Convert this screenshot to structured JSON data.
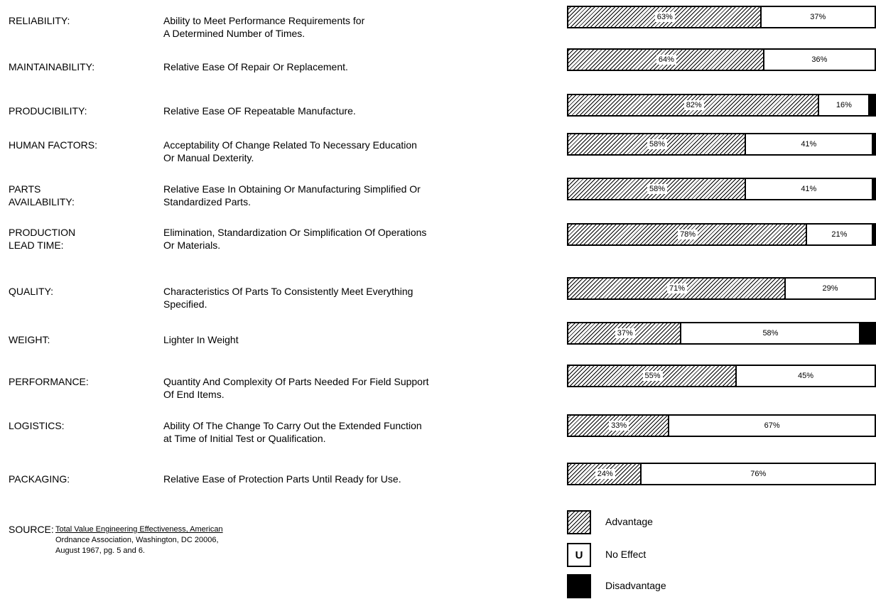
{
  "chart_data": {
    "type": "bar",
    "orientation": "horizontal-stacked-100",
    "legend": [
      "Advantage",
      "No Effect",
      "Disadvantage"
    ],
    "rows": [
      {
        "attribute": "RELIABILITY:",
        "description": "Ability to Meet Performance Requirements for\nA Determined Number of Times.",
        "advantage": 63,
        "no_effect": 37,
        "disadvantage": 0,
        "adv_label": "63%",
        "noe_label": "37%"
      },
      {
        "attribute": "MAINTAINABILITY:",
        "description": "Relative Ease Of Repair Or Replacement.",
        "advantage": 64,
        "no_effect": 36,
        "disadvantage": 0,
        "adv_label": "64%",
        "noe_label": "36%"
      },
      {
        "attribute": "PRODUCIBILITY:",
        "description": "Relative Ease OF Repeatable Manufacture.",
        "advantage": 82,
        "no_effect": 16,
        "disadvantage": 2,
        "adv_label": "82%",
        "noe_label": "16%"
      },
      {
        "attribute": "HUMAN FACTORS:",
        "description": "Acceptability Of Change Related To Necessary Education\nOr Manual Dexterity.",
        "advantage": 58,
        "no_effect": 41,
        "disadvantage": 1,
        "adv_label": "58%",
        "noe_label": "41%"
      },
      {
        "attribute": "PARTS\nAVAILABILITY:",
        "description": "Relative Ease In Obtaining Or Manufacturing Simplified Or\nStandardized Parts.",
        "advantage": 58,
        "no_effect": 41,
        "disadvantage": 1,
        "adv_label": "58%",
        "noe_label": "41%"
      },
      {
        "attribute": "PRODUCTION\nLEAD TIME:",
        "description": "Elimination, Standardization Or Simplification Of Operations\nOr Materials.",
        "advantage": 78,
        "no_effect": 21,
        "disadvantage": 1,
        "adv_label": "78%",
        "noe_label": "21%"
      },
      {
        "attribute": "QUALITY:",
        "description": "Characteristics Of Parts To Consistently Meet Everything\nSpecified.",
        "advantage": 71,
        "no_effect": 29,
        "disadvantage": 0,
        "adv_label": "71%",
        "noe_label": "29%"
      },
      {
        "attribute": "WEIGHT:",
        "description": "Lighter In Weight",
        "advantage": 37,
        "no_effect": 58,
        "disadvantage": 5,
        "adv_label": "37%",
        "noe_label": "58%"
      },
      {
        "attribute": "PERFORMANCE:",
        "description": "Quantity And Complexity Of Parts Needed For Field Support\nOf End Items.",
        "advantage": 55,
        "no_effect": 45,
        "disadvantage": 0,
        "adv_label": "55%",
        "noe_label": "45%"
      },
      {
        "attribute": "LOGISTICS:",
        "description": "Ability Of The Change To Carry Out the Extended Function\nat Time of Initial Test or Qualification.",
        "advantage": 33,
        "no_effect": 67,
        "disadvantage": 0,
        "adv_label": "33%",
        "noe_label": "67%"
      },
      {
        "attribute": "PACKAGING:",
        "description": "Relative Ease of Protection Parts Until Ready for Use.",
        "advantage": 24,
        "no_effect": 76,
        "disadvantage": 0,
        "adv_label": "24%",
        "noe_label": "76%"
      }
    ]
  },
  "legend_items": [
    {
      "label": "Advantage",
      "swatch": "hatched"
    },
    {
      "label": "No Effect",
      "swatch": "U"
    },
    {
      "label": "Disadvantage",
      "swatch": "black"
    }
  ],
  "source": {
    "label": "SOURCE:",
    "title": "Total Value Engineering Effectiveness, American",
    "line2": "Ordnance Association, Washington, DC 20006,",
    "line3": "August 1967, pg. 5 and 6."
  }
}
